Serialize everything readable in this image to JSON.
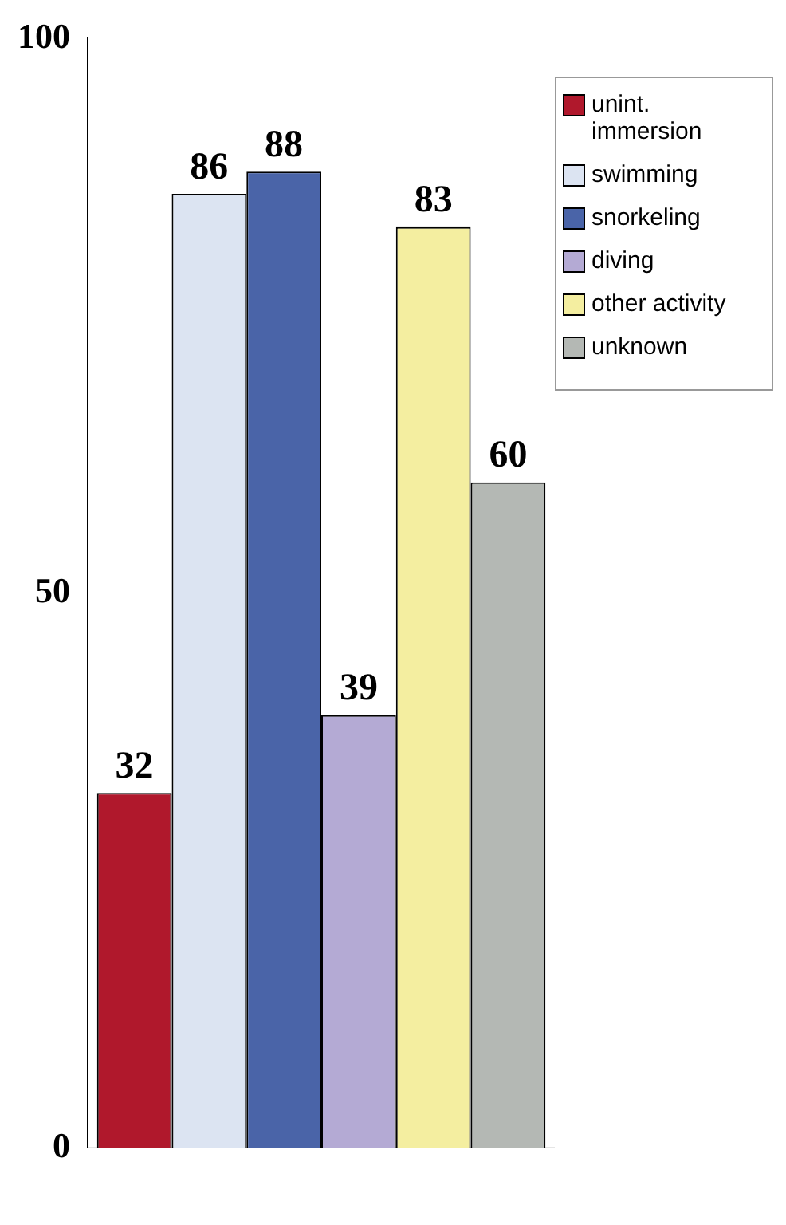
{
  "chart_data": {
    "type": "bar",
    "categories": [
      null
    ],
    "series": [
      {
        "name": "unint. immersion",
        "color": "#b0182c",
        "values": [
          32
        ]
      },
      {
        "name": "swimming",
        "color": "#dce4f2",
        "values": [
          86
        ]
      },
      {
        "name": "snorkeling",
        "color": "#4a64a8",
        "values": [
          88
        ]
      },
      {
        "name": "diving",
        "color": "#b4aad4",
        "values": [
          39
        ]
      },
      {
        "name": "other activity",
        "color": "#f4eea0",
        "values": [
          83
        ]
      },
      {
        "name": "unknown",
        "color": "#b4b8b4",
        "values": [
          60
        ]
      }
    ],
    "ylim": [
      0,
      100
    ],
    "yticks": [
      0,
      50,
      100
    ],
    "grid": false,
    "legend": "right",
    "data_labels": true
  }
}
